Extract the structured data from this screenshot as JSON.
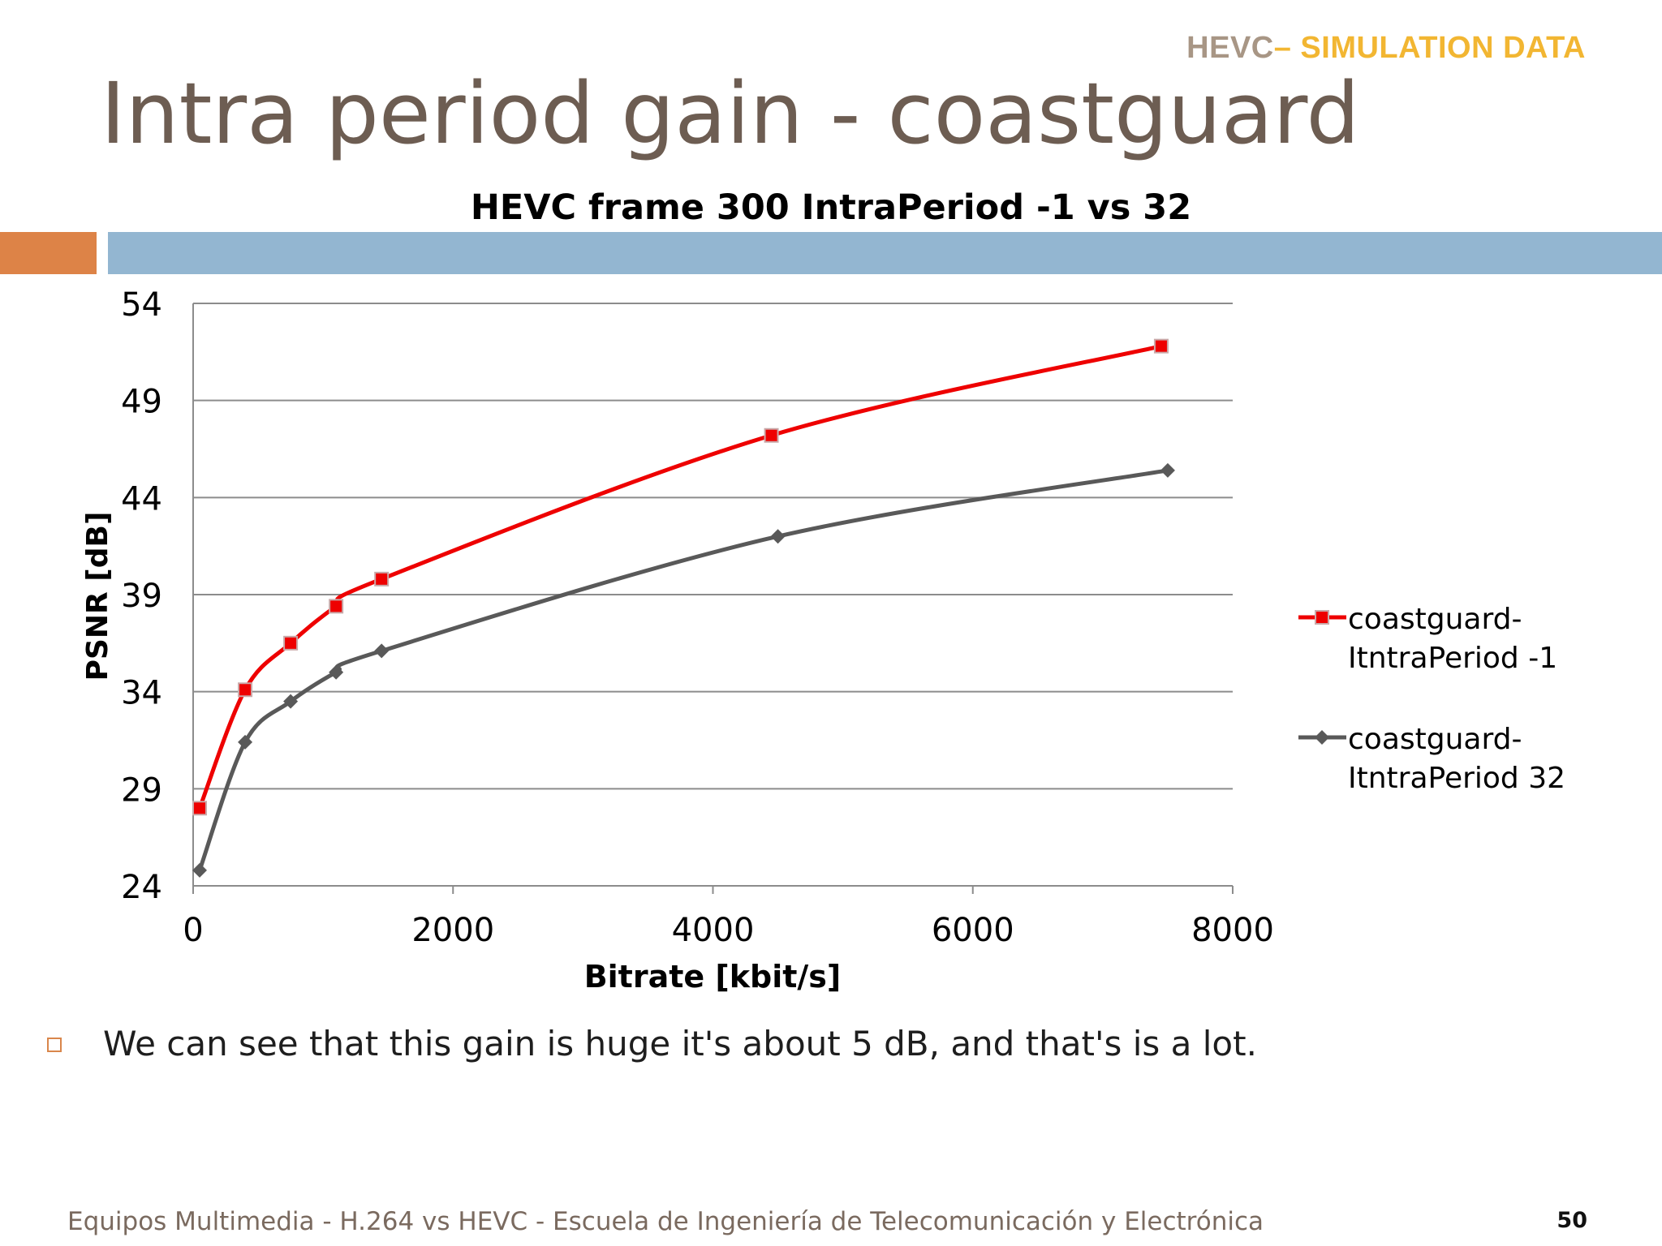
{
  "slide": {
    "header_main": "HEVC",
    "header_accent": "– SIMULATION DATA",
    "title": "Intra period gain - coastguard",
    "bullet": "We can see that this gain is huge it's about 5 dB, and that's is a lot.",
    "footer": "Equipos Multimedia - H.264 vs HEVC - Escuela de Ingeniería de Telecomunicación y Electrónica",
    "page_number": "50"
  },
  "colors": {
    "title": "#6d5d52",
    "header_main": "#a89685",
    "header_accent": "#f2b632",
    "band_orange": "#dd8347",
    "band_blue": "#93b6d1"
  },
  "chart_data": {
    "type": "line",
    "title": "HEVC frame 300 IntraPeriod -1 vs 32",
    "xlabel": "Bitrate [kbit/s]",
    "ylabel": "PSNR [dB]",
    "xlim": [
      0,
      8000
    ],
    "ylim": [
      24,
      54
    ],
    "xticks": [
      0,
      2000,
      4000,
      6000,
      8000
    ],
    "yticks": [
      24,
      29,
      34,
      39,
      44,
      49,
      54
    ],
    "grid": "horizontal",
    "legend_position": "right",
    "series": [
      {
        "name": "coastguard-ItntraPeriod -1",
        "legend_lines": [
          "coastguard-",
          "ItntraPeriod -1"
        ],
        "color": "#ee0000",
        "marker": "square",
        "points": [
          [
            50,
            28.0
          ],
          [
            400,
            34.1
          ],
          [
            750,
            36.5
          ],
          [
            1100,
            38.4
          ],
          [
            1450,
            39.8
          ],
          [
            4450,
            47.2
          ],
          [
            7450,
            51.8
          ]
        ]
      },
      {
        "name": "coastguard-ItntraPeriod 32",
        "legend_lines": [
          "coastguard-",
          "ItntraPeriod 32"
        ],
        "color": "#595959",
        "marker": "diamond",
        "points": [
          [
            50,
            24.8
          ],
          [
            400,
            31.4
          ],
          [
            750,
            33.5
          ],
          [
            1100,
            35.0
          ],
          [
            1450,
            36.1
          ],
          [
            4500,
            42.0
          ],
          [
            7500,
            45.4
          ]
        ]
      }
    ]
  }
}
